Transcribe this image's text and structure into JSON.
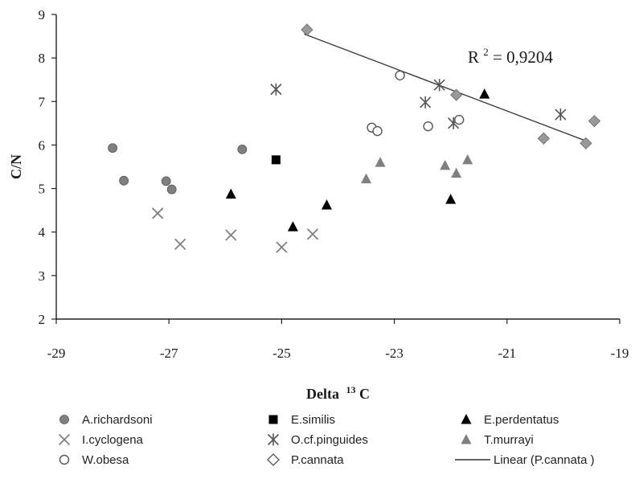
{
  "chart_data": {
    "type": "scatter",
    "xlabel": "Delta",
    "xlabel_sup": "13",
    "xlabel_suffix": "C",
    "ylabel": "C/N",
    "xlim": [
      -29,
      -19
    ],
    "ylim": [
      2,
      9
    ],
    "xticks": [
      -29,
      -27,
      -25,
      -23,
      -21,
      -19
    ],
    "yticks": [
      2,
      3,
      4,
      5,
      6,
      7,
      8,
      9
    ],
    "grid": false,
    "legend_position": "bottom",
    "annotation": {
      "prefix": "R",
      "sup": "2",
      "text": " = 0,9204"
    },
    "series": [
      {
        "name": "A.richardsoni",
        "marker": "circle-filled",
        "color": "#808080",
        "points": [
          [
            -28.0,
            5.93
          ],
          [
            -27.8,
            5.18
          ],
          [
            -27.05,
            5.17
          ],
          [
            -26.95,
            4.98
          ],
          [
            -25.7,
            5.9
          ]
        ]
      },
      {
        "name": "E.similis",
        "marker": "square-filled",
        "color": "#000000",
        "points": [
          [
            -25.1,
            5.66
          ]
        ]
      },
      {
        "name": "E.perdentatus",
        "marker": "triangle-filled",
        "color": "#000000",
        "points": [
          [
            -25.9,
            4.87
          ],
          [
            -24.8,
            4.12
          ],
          [
            -24.2,
            4.62
          ],
          [
            -22.0,
            4.75
          ],
          [
            -21.4,
            7.17
          ]
        ]
      },
      {
        "name": "I.cyclogena",
        "marker": "x",
        "color": "#808080",
        "points": [
          [
            -27.2,
            4.43
          ],
          [
            -26.8,
            3.72
          ],
          [
            -25.9,
            3.93
          ],
          [
            -25.0,
            3.65
          ],
          [
            -24.45,
            3.95
          ]
        ]
      },
      {
        "name": "O.cf.pinguides",
        "marker": "asterisk",
        "color": "#555555",
        "points": [
          [
            -25.1,
            7.28
          ],
          [
            -22.45,
            6.98
          ],
          [
            -22.2,
            7.38
          ],
          [
            -21.95,
            6.5
          ],
          [
            -20.05,
            6.7
          ]
        ]
      },
      {
        "name": "T.murrayi",
        "marker": "triangle-gray",
        "color": "#808080",
        "points": [
          [
            -23.5,
            5.22
          ],
          [
            -23.25,
            5.6
          ],
          [
            -22.1,
            5.53
          ],
          [
            -21.9,
            5.35
          ],
          [
            -21.7,
            5.66
          ]
        ]
      },
      {
        "name": "W.obesa",
        "marker": "circle-open",
        "color": "#555555",
        "points": [
          [
            -23.4,
            6.4
          ],
          [
            -23.3,
            6.32
          ],
          [
            -22.9,
            7.6
          ],
          [
            -22.4,
            6.43
          ],
          [
            -21.85,
            6.58
          ]
        ]
      },
      {
        "name": "P.cannata",
        "marker": "diamond",
        "color": "#999999",
        "points": [
          [
            -24.55,
            8.65
          ],
          [
            -21.9,
            7.15
          ],
          [
            -20.35,
            6.15
          ],
          [
            -19.6,
            6.04
          ],
          [
            -19.45,
            6.55
          ]
        ]
      }
    ],
    "trendline": {
      "name": "Linear (P.cannata )",
      "from": [
        -24.6,
        8.55
      ],
      "to": [
        -19.55,
        6.07
      ],
      "color": "#333333"
    },
    "legend": [
      "A.richardsoni",
      "E.similis",
      "E.perdentatus",
      "I.cyclogena",
      "O.cf.pinguides",
      "T.murrayi",
      "W.obesa",
      "P.cannata",
      "Linear (P.cannata )"
    ]
  }
}
